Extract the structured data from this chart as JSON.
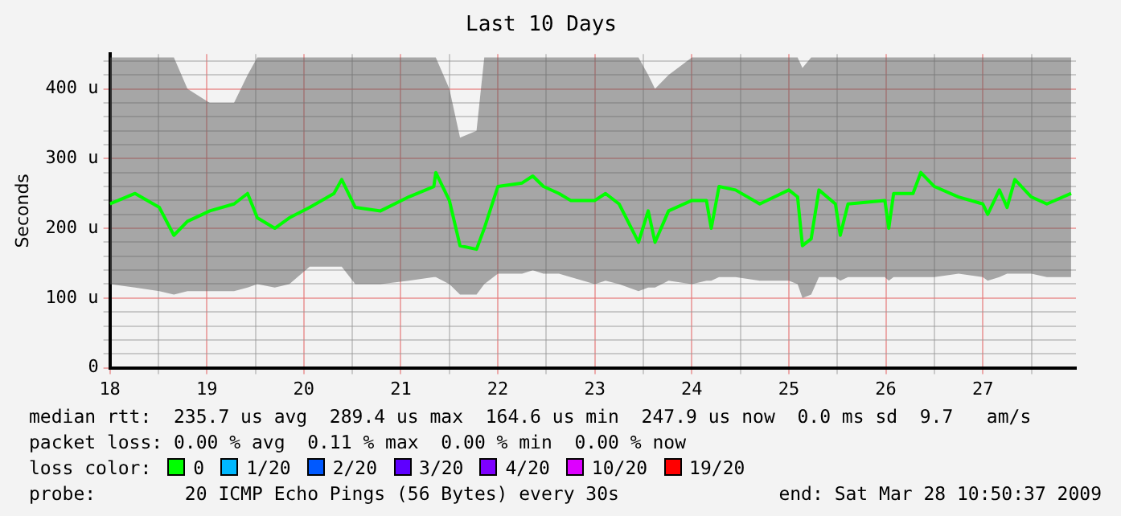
{
  "chart_data": {
    "type": "line",
    "title": "Last 10 Days",
    "ylabel": "Seconds",
    "x": [
      18.0,
      18.26,
      18.51,
      18.66,
      18.8,
      19.03,
      19.28,
      19.42,
      19.52,
      19.7,
      19.85,
      20.06,
      20.31,
      20.39,
      20.53,
      20.79,
      21.08,
      21.34,
      21.36,
      21.5,
      21.61,
      21.78,
      21.86,
      22.0,
      22.25,
      22.36,
      22.47,
      22.63,
      22.75,
      23.0,
      23.11,
      23.25,
      23.45,
      23.55,
      23.62,
      23.76,
      24.0,
      24.15,
      24.2,
      24.28,
      24.45,
      24.7,
      25.0,
      25.09,
      25.14,
      25.23,
      25.31,
      25.48,
      25.53,
      25.61,
      25.99,
      26.03,
      26.08,
      26.28,
      26.36,
      26.5,
      26.75,
      27.0,
      27.05,
      27.17,
      27.25,
      27.33,
      27.5,
      27.66,
      27.91
    ],
    "series": [
      {
        "color": "#00ff00",
        "values": [
          235,
          250,
          230,
          190,
          210,
          225,
          235,
          250,
          215,
          200,
          215,
          230,
          250,
          270,
          230,
          225,
          245,
          260,
          280,
          240,
          175,
          170,
          200,
          260,
          265,
          275,
          260,
          250,
          240,
          240,
          250,
          235,
          180,
          225,
          180,
          225,
          240,
          240,
          200,
          260,
          255,
          235,
          255,
          245,
          175,
          185,
          255,
          235,
          190,
          235,
          240,
          200,
          250,
          250,
          280,
          260,
          245,
          235,
          220,
          255,
          230,
          270,
          245,
          235,
          250
        ],
        "lower": [
          120,
          115,
          110,
          105,
          110,
          110,
          110,
          115,
          120,
          115,
          120,
          145,
          145,
          145,
          120,
          120,
          125,
          130,
          130,
          120,
          105,
          105,
          120,
          135,
          135,
          140,
          135,
          135,
          130,
          120,
          125,
          120,
          110,
          115,
          115,
          125,
          120,
          125,
          125,
          130,
          130,
          125,
          125,
          120,
          100,
          105,
          130,
          130,
          125,
          130,
          130,
          125,
          130,
          130,
          130,
          130,
          135,
          130,
          125,
          130,
          135,
          135,
          135,
          130,
          130
        ],
        "upper": [
          445,
          445,
          445,
          445,
          400,
          380,
          380,
          420,
          445,
          445,
          445,
          445,
          445,
          445,
          445,
          445,
          445,
          445,
          445,
          400,
          330,
          340,
          445,
          445,
          445,
          445,
          445,
          445,
          445,
          445,
          445,
          445,
          445,
          420,
          400,
          420,
          445,
          445,
          445,
          445,
          445,
          445,
          445,
          445,
          430,
          445,
          445,
          445,
          445,
          445,
          445,
          445,
          445,
          445,
          445,
          445,
          445,
          445,
          445,
          445,
          445,
          445,
          445,
          445,
          445
        ]
      }
    ],
    "xlim": [
      18,
      27.96
    ],
    "xticks": [
      18,
      {
        "value": 18.5,
        "label": null
      },
      19,
      {
        "value": 19.5,
        "label": null
      },
      20,
      {
        "value": 20.5,
        "label": null
      },
      21,
      {
        "value": 21.5,
        "label": null
      },
      22,
      {
        "value": 22.5,
        "label": null
      },
      23,
      {
        "value": 23.5,
        "label": null
      },
      24,
      {
        "value": 24.5,
        "label": null
      },
      25,
      {
        "value": 25.5,
        "label": null
      },
      26,
      {
        "value": 26.5,
        "label": null
      },
      27,
      {
        "value": 27.5,
        "label": null
      }
    ],
    "ylim": [
      0,
      450
    ],
    "yticks": [
      0,
      {
        "value": 20,
        "label": null
      },
      {
        "value": 40,
        "label": null
      },
      {
        "value": 60,
        "label": null
      },
      {
        "value": 80,
        "label": null
      },
      {
        "value": 100,
        "label": "100 u"
      },
      {
        "value": 120,
        "label": null
      },
      {
        "value": 140,
        "label": null
      },
      {
        "value": 160,
        "label": null
      },
      {
        "value": 180,
        "label": null
      },
      {
        "value": 200,
        "label": "200 u"
      },
      {
        "value": 220,
        "label": null
      },
      {
        "value": 240,
        "label": null
      },
      {
        "value": 260,
        "label": null
      },
      {
        "value": 280,
        "label": null
      },
      {
        "value": 300,
        "label": "300 u"
      },
      {
        "value": 320,
        "label": null
      },
      {
        "value": 340,
        "label": null
      },
      {
        "value": 360,
        "label": null
      },
      {
        "value": 380,
        "label": null
      },
      {
        "value": 400,
        "label": "400 u"
      },
      {
        "value": 420,
        "label": null
      },
      {
        "value": 440,
        "label": null
      }
    ],
    "grid": true,
    "annotations": [
      "median rtt:  235.7 us avg  289.4 us max  164.6 us min  247.9 us now  0.0 ms sd  9.7   am/s",
      "packet loss: 0.00 % avg  0.11 % max  0.00 % min  0.00 % now",
      "loss color:",
      "0",
      "1/20",
      "2/20",
      "3/20",
      "4/20",
      "10/20",
      "19/20",
      "probe:        20 ICMP Echo Pings (56 Bytes) every 30s",
      "end: Sat Mar 28 10:50:37 2009"
    ]
  }
}
